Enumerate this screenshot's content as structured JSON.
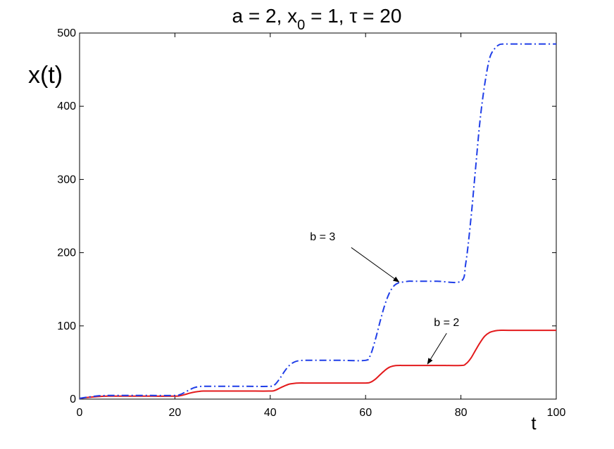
{
  "chart_data": {
    "type": "line",
    "title": {
      "prefix": "a = 2, x",
      "subscript": "0",
      "suffix": " = 1, τ = 20"
    },
    "xlabel": "t",
    "ylabel": "x(t)",
    "xlim": [
      0,
      100
    ],
    "ylim": [
      0,
      500
    ],
    "x_ticks": [
      "0",
      "20",
      "40",
      "60",
      "80",
      "100"
    ],
    "y_ticks": [
      "0",
      "100",
      "200",
      "300",
      "400",
      "500"
    ],
    "grid": false,
    "series": [
      {
        "name": "b = 2",
        "color": "#e31a1c",
        "style": "solid",
        "x": [
          0,
          2,
          4,
          6,
          10,
          15,
          20,
          21,
          22,
          23,
          24,
          25,
          26,
          28,
          30,
          35,
          40,
          41,
          42,
          43,
          44,
          45,
          46,
          48,
          50,
          55,
          60,
          61,
          62,
          63,
          64,
          65,
          66,
          67,
          68,
          70,
          75,
          80,
          81,
          82,
          83,
          84,
          85,
          86,
          87,
          88,
          90,
          95,
          100
        ],
        "y": [
          1,
          2.5,
          3.5,
          4,
          4,
          4,
          4,
          4.5,
          6,
          8,
          9.5,
          10.5,
          11,
          11,
          11,
          11,
          11,
          12,
          15,
          18,
          20.5,
          21.5,
          22,
          22,
          22,
          22,
          22,
          23,
          27,
          33,
          39,
          43.5,
          45.5,
          46,
          46,
          46,
          46,
          46,
          48,
          55,
          66,
          77,
          86,
          91,
          93,
          94,
          94,
          94,
          94
        ]
      },
      {
        "name": "b = 3",
        "color": "#1f3ee8",
        "style": "dash-dot",
        "x": [
          0,
          2,
          4,
          6,
          10,
          15,
          20,
          21,
          22,
          23,
          24,
          25,
          26,
          28,
          30,
          35,
          40,
          41,
          42,
          43,
          44,
          45,
          46,
          47,
          48,
          50,
          55,
          60,
          61,
          62,
          63,
          64,
          65,
          66,
          67,
          68,
          69,
          70,
          75,
          80,
          81,
          82,
          83,
          84,
          85,
          86,
          87,
          88,
          89,
          90,
          95,
          100
        ],
        "y": [
          1,
          3,
          4.5,
          5,
          5,
          5,
          5,
          6,
          9,
          12.5,
          15.5,
          17,
          17.5,
          17.5,
          17.5,
          17.5,
          17.5,
          20,
          28,
          38,
          46,
          50.5,
          52.5,
          53,
          53,
          53,
          53,
          53,
          60,
          80,
          105,
          128,
          145,
          155,
          159,
          160,
          161,
          161,
          161,
          161,
          185,
          240,
          310,
          380,
          430,
          465,
          478,
          484,
          485,
          485,
          485,
          485
        ]
      }
    ],
    "annotations": [
      {
        "text": "b = 3",
        "text_at": [
          51,
          217
        ],
        "arrow_from": [
          57,
          207
        ],
        "arrow_to": [
          67,
          160
        ]
      },
      {
        "text": "b = 2",
        "text_at": [
          77,
          100
        ],
        "arrow_from": [
          77,
          90
        ],
        "arrow_to": [
          73,
          48
        ]
      }
    ]
  }
}
